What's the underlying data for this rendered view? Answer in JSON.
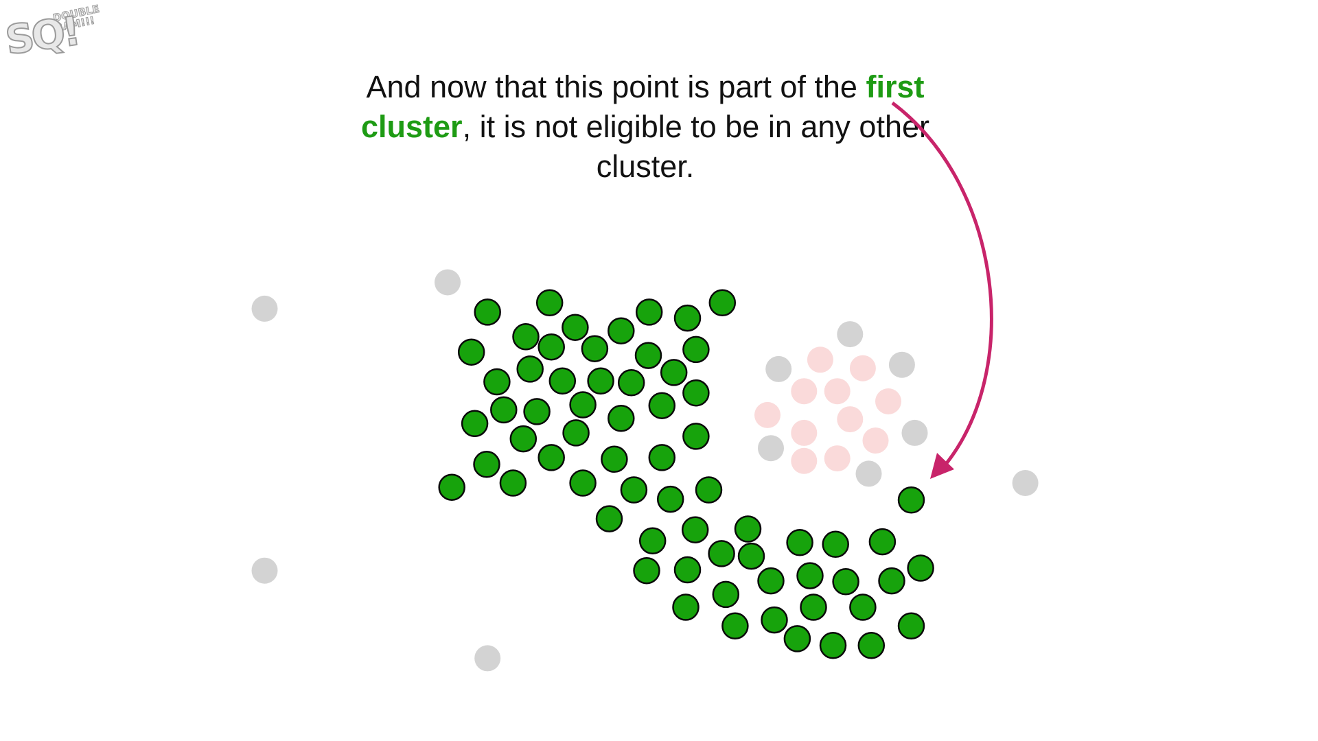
{
  "logo": {
    "main_text": "SQ!",
    "small_text": "DOUBLE BAM!!!"
  },
  "caption": {
    "part1": "And now that this point is part of the ",
    "highlight": "first cluster",
    "part2": ", it is not eligible to be in any other cluster."
  },
  "colors": {
    "cluster_fill": "#17a30c",
    "cluster_stroke": "#0a0a0a",
    "faded_gray": "#d3d3d3",
    "faded_pink": "#fadada",
    "arrow": "#c8246a",
    "highlight_text": "#1e9b14"
  }
}
